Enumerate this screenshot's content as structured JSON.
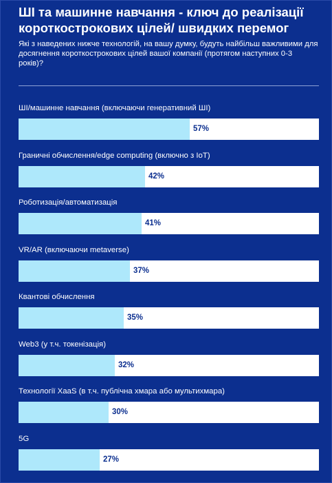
{
  "header": {
    "title": "ШІ та машинне навчання - ключ до реалізації короткострокових цілей/ швидких перемог",
    "subtitle": "Які з наведених нижче технологій, на вашу думку, будуть найбільш важливими для досягнення короткострокових цілей вашої компанії (протягом наступних 0-3 років)?"
  },
  "colors": {
    "background": "#0c2f8f",
    "bar_fill": "#aee8fb",
    "bar_track": "#ffffff",
    "value_text": "#0c2f8f"
  },
  "chart_data": {
    "type": "bar",
    "orientation": "horizontal",
    "title": "ШІ та машинне навчання - ключ до реалізації короткострокових цілей/ швидких перемог",
    "xlim": [
      0,
      100
    ],
    "grid": false,
    "categories": [
      "ШІ/машинне навчання (включаючи генеративний ШІ)",
      "Граничні обчислення/edge computing (включно з IoT)",
      "Роботизація/автоматизація",
      "VR/AR (включаючи metaverse)",
      "Квантові обчислення",
      "Web3 (у т.ч. токенізація)",
      "Технології XaaS (в т.ч. публічна хмара або мультихмара)",
      "5G"
    ],
    "values": [
      57,
      42,
      41,
      37,
      35,
      32,
      30,
      27
    ],
    "value_labels": [
      "57%",
      "42%",
      "41%",
      "37%",
      "35%",
      "32%",
      "30%",
      "27%"
    ]
  }
}
